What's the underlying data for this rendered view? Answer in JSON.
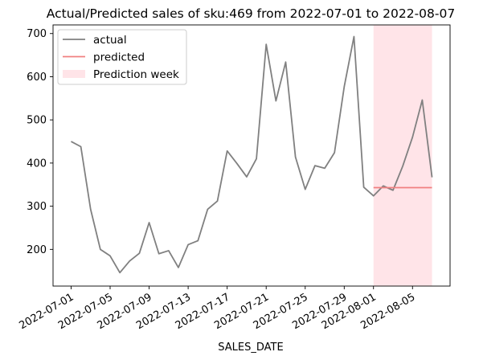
{
  "chart_data": {
    "type": "line",
    "title": "Actual/Predicted sales of sku:469 from 2022-07-01 to 2022-08-07",
    "xlabel": "SALES_DATE",
    "ylabel": "",
    "ylim": [
      115,
      720
    ],
    "yticks": [
      200,
      300,
      400,
      500,
      600,
      700
    ],
    "x_start": "2022-07-01",
    "x_end": "2022-08-07",
    "xticks": [
      "2022-07-01",
      "2022-07-05",
      "2022-07-09",
      "2022-07-13",
      "2022-07-17",
      "2022-07-21",
      "2022-07-25",
      "2022-07-29",
      "2022-08-01",
      "2022-08-05"
    ],
    "grid": false,
    "legend_position": "top-left",
    "series": [
      {
        "name": "actual",
        "color": "#808080",
        "x": [
          "2022-07-01",
          "2022-07-02",
          "2022-07-03",
          "2022-07-04",
          "2022-07-05",
          "2022-07-06",
          "2022-07-07",
          "2022-07-08",
          "2022-07-09",
          "2022-07-10",
          "2022-07-11",
          "2022-07-12",
          "2022-07-13",
          "2022-07-14",
          "2022-07-15",
          "2022-07-16",
          "2022-07-17",
          "2022-07-18",
          "2022-07-19",
          "2022-07-20",
          "2022-07-21",
          "2022-07-22",
          "2022-07-23",
          "2022-07-24",
          "2022-07-25",
          "2022-07-26",
          "2022-07-27",
          "2022-07-28",
          "2022-07-29",
          "2022-07-30",
          "2022-07-31",
          "2022-08-01",
          "2022-08-02",
          "2022-08-03",
          "2022-08-04",
          "2022-08-05",
          "2022-08-06",
          "2022-08-07"
        ],
        "values": [
          450,
          438,
          293,
          200,
          185,
          146,
          173,
          191,
          262,
          190,
          197,
          158,
          211,
          220,
          293,
          312,
          428,
          399,
          368,
          410,
          675,
          544,
          634,
          414,
          339,
          394,
          388,
          424,
          577,
          693,
          344,
          324,
          347,
          337,
          393,
          460,
          546,
          367
        ]
      },
      {
        "name": "predicted",
        "color": "#f08080",
        "x": [
          "2022-08-01",
          "2022-08-07"
        ],
        "values": [
          343,
          343
        ]
      }
    ],
    "shaded_region": {
      "name": "Prediction week",
      "color": "#ffe4e8",
      "x_start": "2022-08-01",
      "x_end": "2022-08-07"
    }
  }
}
